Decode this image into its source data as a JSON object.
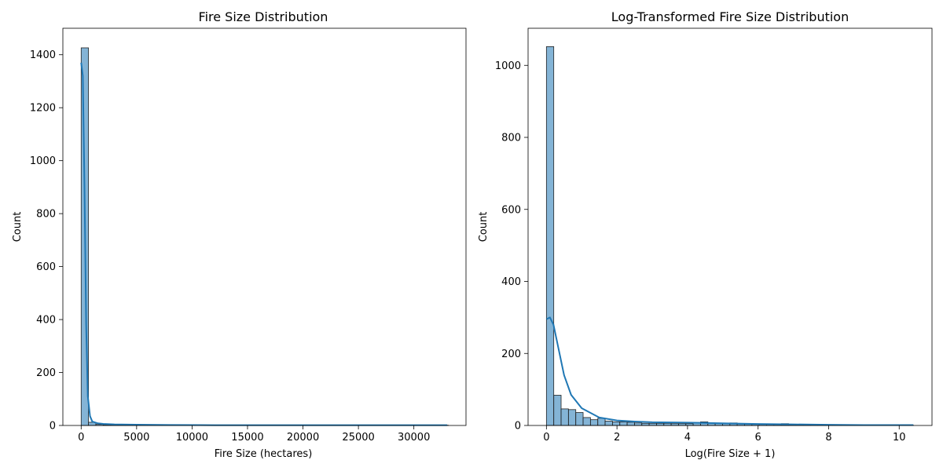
{
  "chart_data": [
    {
      "type": "bar",
      "title": "Fire Size Distribution",
      "xlabel": "Fire Size (hectares)",
      "ylabel": "Count",
      "xlim": [
        -1650,
        34700
      ],
      "ylim": [
        0,
        1500
      ],
      "xticks": [
        0,
        5000,
        10000,
        15000,
        20000,
        25000,
        30000
      ],
      "yticks": [
        0,
        200,
        400,
        600,
        800,
        1000,
        1200,
        1400
      ],
      "color": "#1f77b4",
      "bin_start": 0,
      "bin_width": 662,
      "counts": [
        1426,
        12,
        4,
        3,
        2,
        2,
        2,
        1,
        1,
        1,
        1,
        1,
        1,
        1,
        1,
        1,
        1,
        0,
        1,
        0,
        1,
        0,
        1,
        0,
        0,
        1,
        0,
        0,
        0,
        0,
        1,
        0,
        0,
        0,
        0,
        0,
        0,
        0,
        0,
        1,
        0,
        1,
        0,
        0,
        0,
        0,
        0,
        0,
        0,
        1
      ],
      "kde": {
        "x": [
          0,
          150,
          300,
          450,
          600,
          800,
          1000,
          1500,
          2000,
          3000,
          5000,
          8000,
          12000,
          16000,
          20000,
          24000,
          28000,
          33000
        ],
        "y": [
          1370,
          1320,
          900,
          380,
          110,
          35,
          15,
          8,
          6,
          4,
          3,
          2,
          1,
          1,
          1,
          1,
          1,
          1
        ]
      }
    },
    {
      "type": "bar",
      "title": "Log-Transformed Fire Size Distribution",
      "xlabel": "Log(Fire Size + 1)",
      "ylabel": "Count",
      "xlim": [
        -0.52,
        10.93
      ],
      "ylim": [
        0,
        1103
      ],
      "xticks": [
        0,
        2,
        4,
        6,
        8,
        10
      ],
      "yticks": [
        0,
        200,
        400,
        600,
        800,
        1000
      ],
      "color": "#1f77b4",
      "bin_start": 0,
      "bin_width": 0.208,
      "counts": [
        1052,
        84,
        46,
        44,
        36,
        22,
        16,
        20,
        12,
        10,
        10,
        9,
        7,
        6,
        6,
        6,
        6,
        5,
        5,
        5,
        8,
        10,
        7,
        6,
        6,
        7,
        4,
        4,
        3,
        3,
        3,
        3,
        5,
        3,
        2,
        2,
        2,
        2,
        2,
        1,
        1,
        1,
        1,
        1,
        1,
        1,
        1,
        1,
        1,
        1
      ],
      "kde": {
        "x": [
          0,
          0.1,
          0.2,
          0.35,
          0.5,
          0.7,
          1.0,
          1.5,
          2.0,
          2.5,
          3.0,
          4.0,
          5.0,
          6.0,
          7.0,
          8.0,
          9.0,
          10.4
        ],
        "y": [
          295,
          300,
          280,
          210,
          140,
          85,
          48,
          22,
          14,
          11,
          9,
          8,
          6,
          4,
          3,
          2,
          1,
          1
        ]
      }
    }
  ]
}
